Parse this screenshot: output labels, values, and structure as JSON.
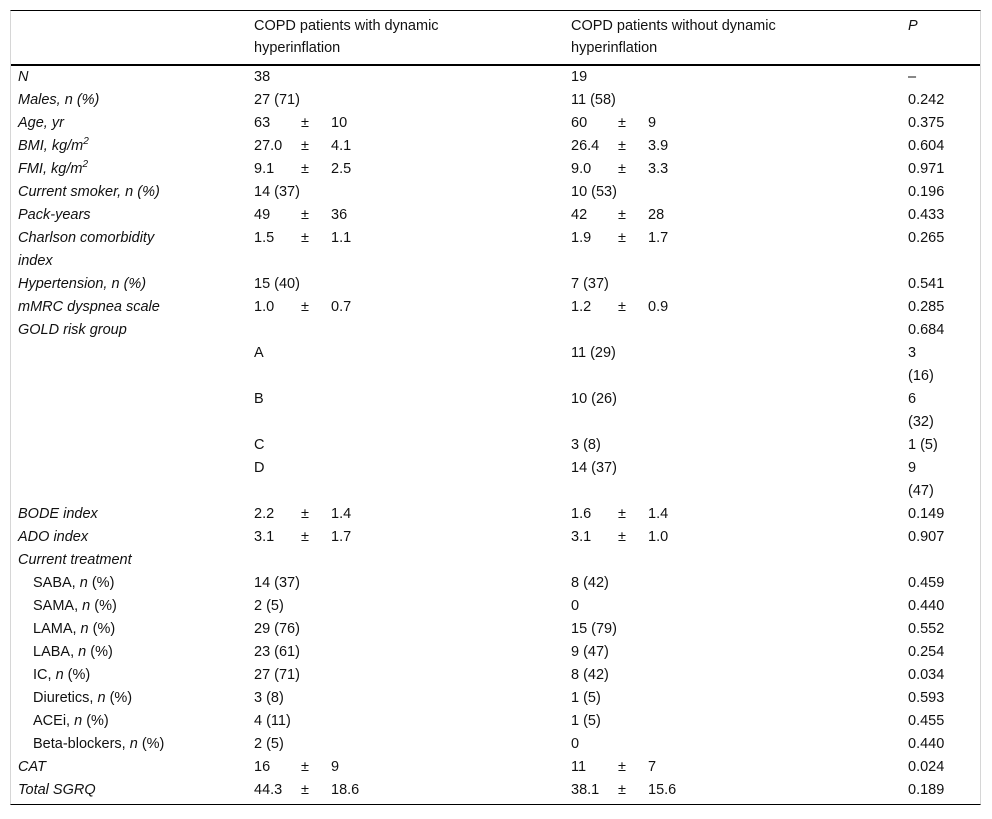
{
  "table": {
    "pm": "±",
    "header": {
      "col1": "",
      "col2": "COPD patients with dynamic\nhyperinflation",
      "col3": "COPD patients without dynamic\nhyperinflation",
      "p": "P"
    },
    "rows": [
      {
        "label": [
          [
            {
              "t": "N",
              "i": 1
            }
          ]
        ],
        "c2": "38",
        "c3": "19",
        "p": "–"
      },
      {
        "label": [
          [
            {
              "t": "Males, n (%)",
              "i": 1
            }
          ]
        ],
        "c2": "27 (71)",
        "c3": "11 (58)",
        "p": "0.242"
      },
      {
        "label": [
          [
            {
              "t": "Age, yr",
              "i": 1
            }
          ]
        ],
        "c2": {
          "v1": "63",
          "v2": "10"
        },
        "c3": {
          "v1": "60",
          "v2": "9"
        },
        "p": "0.375"
      },
      {
        "label": [
          [
            {
              "t": "BMI, kg/m",
              "i": 1
            },
            {
              "t": "2",
              "i": 1,
              "sup": 1
            }
          ]
        ],
        "c2": {
          "v1": "27.0",
          "v2": "4.1"
        },
        "c3": {
          "v1": "26.4",
          "v2": "3.9"
        },
        "p": "0.604"
      },
      {
        "label": [
          [
            {
              "t": "FMI, kg/m",
              "i": 1
            },
            {
              "t": "2",
              "i": 1,
              "sup": 1
            }
          ]
        ],
        "c2": {
          "v1": "9.1",
          "v2": "2.5"
        },
        "c3": {
          "v1": "9.0",
          "v2": "3.3"
        },
        "p": "0.971"
      },
      {
        "label": [
          [
            {
              "t": "Current smoker, n (%)",
              "i": 1
            }
          ]
        ],
        "c2": "14 (37)",
        "c3": "10 (53)",
        "p": "0.196"
      },
      {
        "label": [
          [
            {
              "t": "Pack-years",
              "i": 1
            }
          ]
        ],
        "c2": {
          "v1": "49",
          "v2": "36"
        },
        "c3": {
          "v1": "42",
          "v2": "28"
        },
        "p": "0.433"
      },
      {
        "label": [
          [
            {
              "t": "Charlson comorbidity",
              "i": 1
            }
          ],
          [
            {
              "t": "index",
              "i": 1
            }
          ]
        ],
        "c2": {
          "v1": "1.5",
          "v2": "1.1"
        },
        "c3": {
          "v1": "1.9",
          "v2": "1.7"
        },
        "p": "0.265"
      },
      {
        "label": [
          [
            {
              "t": "Hypertension, n (%)",
              "i": 1
            }
          ]
        ],
        "c2": "15 (40)",
        "c3": "7 (37)",
        "p": "0.541"
      },
      {
        "label": [
          [
            {
              "t": "mMRC dyspnea scale",
              "i": 1
            }
          ]
        ],
        "c2": {
          "v1": "1.0",
          "v2": "0.7"
        },
        "c3": {
          "v1": "1.2",
          "v2": "0.9"
        },
        "p": "0.285"
      },
      {
        "label": [
          [
            {
              "t": "GOLD risk group",
              "i": 1
            }
          ]
        ],
        "c2": "",
        "c3": "",
        "p": "0.684"
      },
      {
        "label": [],
        "c2": "A",
        "c3": "11 (29)",
        "p": "3\n(16)"
      },
      {
        "label": [],
        "c2": "B",
        "c3": "10 (26)",
        "p": "6\n(32)"
      },
      {
        "label": [],
        "c2": "C",
        "c3": "3 (8)",
        "p": "1 (5)"
      },
      {
        "label": [],
        "c2": "D",
        "c3": "14 (37)",
        "p": "9\n(47)"
      },
      {
        "label": [
          [
            {
              "t": "BODE index",
              "i": 1
            }
          ]
        ],
        "c2": {
          "v1": "2.2",
          "v2": "1.4"
        },
        "c3": {
          "v1": "1.6",
          "v2": "1.4"
        },
        "p": "0.149"
      },
      {
        "label": [
          [
            {
              "t": "ADO index",
              "i": 1
            }
          ]
        ],
        "c2": {
          "v1": "3.1",
          "v2": "1.7"
        },
        "c3": {
          "v1": "3.1",
          "v2": "1.0"
        },
        "p": "0.907"
      },
      {
        "label": [
          [
            {
              "t": "Current treatment",
              "i": 1
            }
          ]
        ],
        "c2": "",
        "c3": "",
        "p": ""
      },
      {
        "label": [
          [
            {
              "t": "SABA, ",
              "i": 0
            },
            {
              "t": "n",
              "i": 1
            },
            {
              "t": " (%)",
              "i": 0
            }
          ]
        ],
        "indent": 1,
        "c2": "14 (37)",
        "c3": "8 (42)",
        "p": "0.459"
      },
      {
        "label": [
          [
            {
              "t": "SAMA, ",
              "i": 0
            },
            {
              "t": "n",
              "i": 1
            },
            {
              "t": " (%)",
              "i": 0
            }
          ]
        ],
        "indent": 1,
        "c2": "2 (5)",
        "c3": "0",
        "p": "0.440"
      },
      {
        "label": [
          [
            {
              "t": "LAMA, ",
              "i": 0
            },
            {
              "t": "n",
              "i": 1
            },
            {
              "t": " (%)",
              "i": 0
            }
          ]
        ],
        "indent": 1,
        "c2": "29 (76)",
        "c3": "15 (79)",
        "p": "0.552"
      },
      {
        "label": [
          [
            {
              "t": "LABA, ",
              "i": 0
            },
            {
              "t": "n",
              "i": 1
            },
            {
              "t": " (%)",
              "i": 0
            }
          ]
        ],
        "indent": 1,
        "c2": "23 (61)",
        "c3": "9 (47)",
        "p": "0.254"
      },
      {
        "label": [
          [
            {
              "t": "IC, ",
              "i": 0
            },
            {
              "t": "n",
              "i": 1
            },
            {
              "t": " (%)",
              "i": 0
            }
          ]
        ],
        "indent": 1,
        "c2": "27 (71)",
        "c3": "8 (42)",
        "p": "0.034"
      },
      {
        "label": [
          [
            {
              "t": "Diuretics, ",
              "i": 0
            },
            {
              "t": "n",
              "i": 1
            },
            {
              "t": " (%)",
              "i": 0
            }
          ]
        ],
        "indent": 1,
        "c2": "3 (8)",
        "c3": "1 (5)",
        "p": "0.593"
      },
      {
        "label": [
          [
            {
              "t": "ACEi, ",
              "i": 0
            },
            {
              "t": "n",
              "i": 1
            },
            {
              "t": " (%)",
              "i": 0
            }
          ]
        ],
        "indent": 1,
        "c2": "4 (11)",
        "c3": "1 (5)",
        "p": "0.455"
      },
      {
        "label": [
          [
            {
              "t": "Beta-blockers, ",
              "i": 0
            },
            {
              "t": "n",
              "i": 1
            },
            {
              "t": " (%)",
              "i": 0
            }
          ]
        ],
        "indent": 1,
        "c2": "2 (5)",
        "c3": "0",
        "p": "0.440"
      },
      {
        "label": [
          [
            {
              "t": "CAT",
              "i": 1
            }
          ]
        ],
        "c2": {
          "v1": "16",
          "v2": "9"
        },
        "c3": {
          "v1": "11",
          "v2": "7"
        },
        "p": "0.024"
      },
      {
        "label": [
          [
            {
              "t": "Total SGRQ",
              "i": 1
            }
          ]
        ],
        "c2": {
          "v1": "44.3",
          "v2": "18.6"
        },
        "c3": {
          "v1": "38.1",
          "v2": "15.6"
        },
        "p": "0.189"
      }
    ]
  }
}
